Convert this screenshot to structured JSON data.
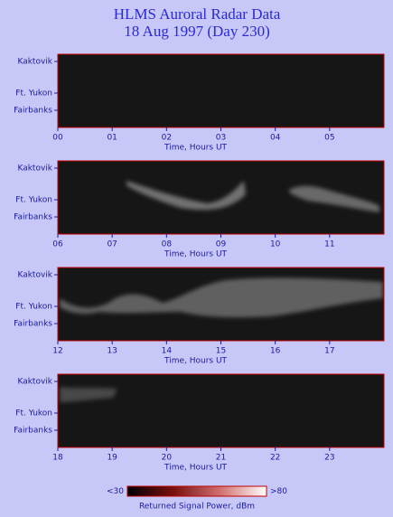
{
  "title_lines": [
    "HLMS Auroral Radar Data",
    "18 Aug 1997 (Day 230)"
  ],
  "chart_data": [
    {
      "type": "heatmap",
      "xlabel": "Time, Hours UT",
      "xlim": [
        0,
        6
      ],
      "xticks": [
        {
          "value": 0,
          "label": "00"
        },
        {
          "value": 1,
          "label": "01"
        },
        {
          "value": 2,
          "label": "02"
        },
        {
          "value": 3,
          "label": "03"
        },
        {
          "value": 4,
          "label": "04"
        },
        {
          "value": 5,
          "label": "05"
        }
      ],
      "ylabels": [
        "Kaktovik",
        "Ft. Yukon",
        "Fairbanks"
      ]
    },
    {
      "type": "heatmap",
      "xlabel": "Time, Hours UT",
      "xlim": [
        6,
        12
      ],
      "xticks": [
        {
          "value": 6,
          "label": "06"
        },
        {
          "value": 7,
          "label": "07"
        },
        {
          "value": 8,
          "label": "08"
        },
        {
          "value": 9,
          "label": "09"
        },
        10,
        11
      ],
      "ylabels": [
        "Kaktovik",
        "Ft. Yukon",
        "Fairbanks"
      ]
    },
    {
      "type": "heatmap",
      "xlabel": "Time, Hours UT",
      "xlim": [
        12,
        18
      ],
      "xticks": [
        12,
        13,
        14,
        15,
        16,
        17
      ],
      "ylabels": [
        "Kaktovik",
        "Ft. Yukon",
        "Fairbanks"
      ]
    },
    {
      "type": "heatmap",
      "xlabel": "Time, Hours UT",
      "xlim": [
        18,
        24
      ],
      "xticks": [
        18,
        19,
        20,
        21,
        22,
        23
      ],
      "ylabels": [
        "Kaktovik",
        "Ft. Yukon",
        "Fairbanks"
      ]
    }
  ],
  "colorbar": {
    "label": "Returned Signal Power, dBm",
    "lim": [
      30,
      80
    ],
    "ticks": [
      {
        "value": 30,
        "label": "<30"
      },
      {
        "value": 80,
        "label": ">80"
      }
    ],
    "colors": [
      "#000000",
      "#7a1010",
      "#d07070",
      "#ffffff"
    ]
  }
}
